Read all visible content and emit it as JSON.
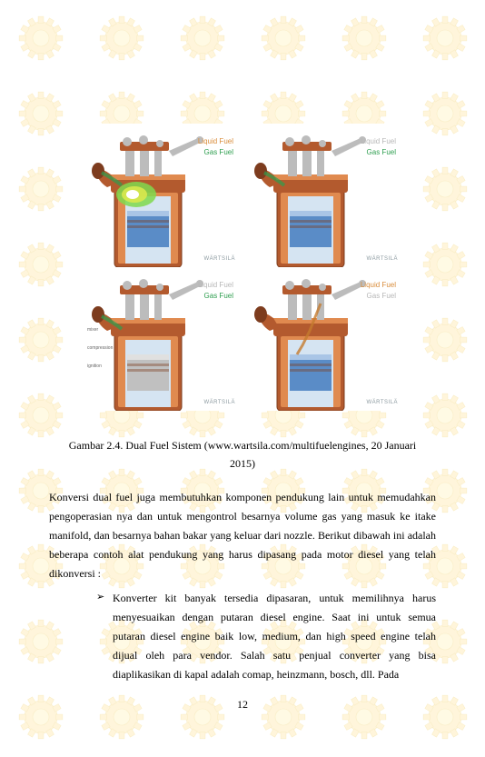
{
  "figure": {
    "panels": [
      {
        "liquid_fuel_label": "Liquid Fuel",
        "liquid_fuel_color": "#d98c3a",
        "gas_fuel_label": "Gas Fuel",
        "gas_fuel_color": "#2e9e4f",
        "brand": "WÄRTSILÄ",
        "show_flame": true,
        "show_liquid_in": false,
        "show_piston_gray": false,
        "side_component_label": "",
        "side_component_label2": "",
        "side_component_label3": ""
      },
      {
        "liquid_fuel_label": "Liquid Fuel",
        "liquid_fuel_color": "#b7b7b7",
        "gas_fuel_label": "Gas Fuel",
        "gas_fuel_color": "#2e9e4f",
        "brand": "WÄRTSILÄ",
        "show_flame": false,
        "show_liquid_in": false,
        "show_piston_gray": false,
        "side_component_label": "",
        "side_component_label2": "",
        "side_component_label3": ""
      },
      {
        "liquid_fuel_label": "Liquid Fuel",
        "liquid_fuel_color": "#b7b7b7",
        "gas_fuel_label": "Gas Fuel",
        "gas_fuel_color": "#2e9e4f",
        "brand": "WÄRTSILÄ",
        "show_flame": false,
        "show_liquid_in": false,
        "show_piston_gray": true,
        "side_component_label": "mixer",
        "side_component_label2": "compression",
        "side_component_label3": "ignition"
      },
      {
        "liquid_fuel_label": "Liquid Fuel",
        "liquid_fuel_color": "#d98c3a",
        "gas_fuel_label": "Gas Fuel",
        "gas_fuel_color": "#b7b7b7",
        "brand": "WÄRTSILÄ",
        "show_flame": false,
        "show_liquid_in": true,
        "show_piston_gray": false,
        "side_component_label": "",
        "side_component_label2": "",
        "side_component_label3": ""
      }
    ]
  },
  "caption": {
    "line1": "Gambar 2.4. Dual Fuel Sistem (www.wartsila.com/multifuelengines, 20 Januari",
    "line2": "2015)"
  },
  "paragraph": "Konversi dual fuel juga membutuhkan komponen pendukung lain untuk memudahkan pengoperasian nya dan untuk mengontrol besarnya volume gas yang masuk ke itake manifold, dan besarnya bahan bakar yang keluar dari nozzle. Berikut dibawah ini adalah beberapa contoh alat pendukung yang harus dipasang pada motor diesel yang telah dikonversi :",
  "bullet": "Konverter kit banyak tersedia dipasaran, untuk memilihnya harus menyesuaikan dengan putaran diesel engine. Saat ini untuk semua putaran diesel engine baik low, medium, dan high speed engine telah dijual oleh para vendor. Salah satu penjual converter yang bisa diaplikasikan di kapal adalah comap, heinzmann, bosch, dll. Pada",
  "page_number": "12",
  "colors": {
    "engine_body": "#b35a2e",
    "engine_body_dark": "#7d3c1e",
    "engine_highlight": "#e08a4f",
    "piston_blue": "#5a8cc7",
    "piston_light": "#a9c5e6",
    "piston_gray": "#c0c0c0",
    "cylinder_blue": "#d5e4f2",
    "rod_gray": "#bcbcbc",
    "flame_green": "#7fd94e",
    "flame_yellow": "#d9e84e",
    "flame_core": "#ffffff",
    "gas_green": "#2e9e4f",
    "liquid_brown": "#c47a2e",
    "brand_gray": "#8c9aa0",
    "watermark_yellow": "#ffe599",
    "watermark_stroke": "#f0cd60",
    "watermark_center": "#fff2b3"
  }
}
